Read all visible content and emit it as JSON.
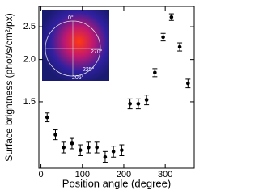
{
  "chart_data": {
    "type": "scatter",
    "xlabel": "Position angle (degree)",
    "ylabel": "Surface brightness (phot/s/cm²/px)",
    "x": [
      15,
      35,
      55,
      75,
      95,
      115,
      135,
      155,
      175,
      195,
      215,
      235,
      255,
      275,
      295,
      315,
      335,
      355
    ],
    "values": [
      1.35,
      1.2,
      1.1,
      1.13,
      1.08,
      1.1,
      1.1,
      1.03,
      1.07,
      1.08,
      1.48,
      1.48,
      1.52,
      1.83,
      2.33,
      2.67,
      2.18,
      1.7
    ],
    "errors": [
      0.04,
      0.04,
      0.04,
      0.04,
      0.04,
      0.04,
      0.04,
      0.04,
      0.04,
      0.04,
      0.05,
      0.05,
      0.05,
      0.05,
      0.06,
      0.06,
      0.06,
      0.05
    ],
    "color": "#000000",
    "xlim": [
      -5,
      370
    ],
    "ylim": [
      0.955,
      2.87
    ],
    "log_y": true,
    "xticks": [
      0,
      100,
      200,
      300
    ],
    "yticks": [
      1.5,
      {
        "value": 2.0,
        "label": "2.0"
      },
      2.5
    ],
    "annotations": [
      "0°",
      "270°",
      "225°",
      "205°"
    ]
  }
}
